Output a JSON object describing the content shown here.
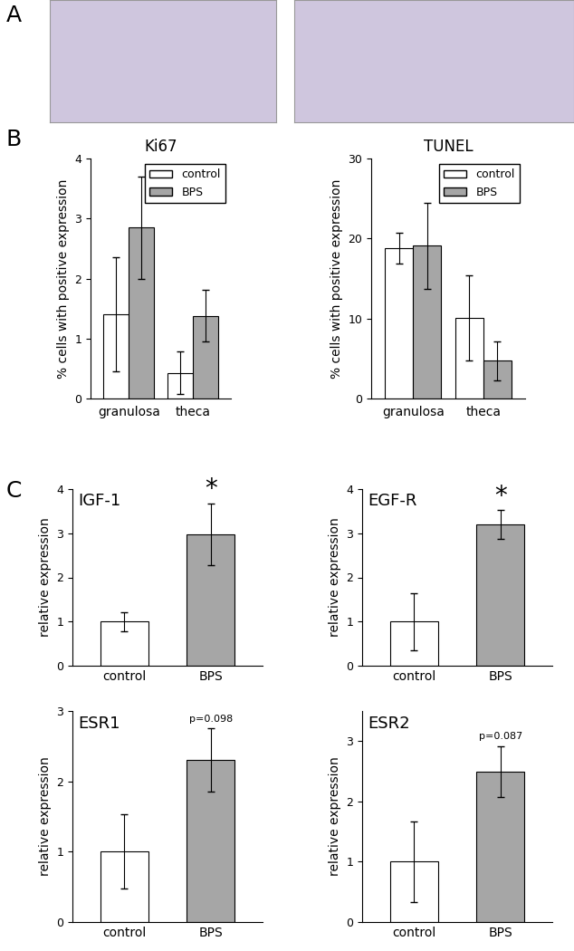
{
  "panel_labels": [
    "A",
    "B",
    "C"
  ],
  "chart_data": [
    {
      "type": "bar",
      "title": "Ki67",
      "y_label": "% cells with positive expression",
      "categories": [
        "granulosa",
        "theca"
      ],
      "series": [
        {
          "name": "control",
          "color": "#ffffff",
          "values": [
            1.4,
            0.43
          ],
          "errors": [
            0.95,
            0.35
          ]
        },
        {
          "name": "BPS",
          "color": "#a6a6a6",
          "values": [
            2.85,
            1.38
          ],
          "errors": [
            0.85,
            0.43
          ]
        }
      ],
      "ylim": [
        0,
        4
      ],
      "yticks": [
        0,
        1,
        2,
        3,
        4
      ],
      "legend": "upper right"
    },
    {
      "type": "bar",
      "title": "TUNEL",
      "y_label": "% cells with positive expression",
      "categories": [
        "granulosa",
        "theca"
      ],
      "series": [
        {
          "name": "control",
          "color": "#ffffff",
          "values": [
            18.8,
            10.1
          ],
          "errors": [
            1.9,
            5.3
          ]
        },
        {
          "name": "BPS",
          "color": "#a6a6a6",
          "values": [
            19.1,
            4.7
          ],
          "errors": [
            5.4,
            2.4
          ]
        }
      ],
      "ylim": [
        0,
        30
      ],
      "yticks": [
        0,
        10,
        20,
        30
      ],
      "legend": "upper right"
    },
    {
      "type": "bar",
      "title": "IGF-1",
      "y_label": "relative expression",
      "categories": [
        "control",
        "BPS"
      ],
      "values": [
        1.0,
        2.98
      ],
      "errors": [
        0.22,
        0.7
      ],
      "colors": [
        "#ffffff",
        "#a6a6a6"
      ],
      "ylim": [
        0,
        4
      ],
      "yticks": [
        0,
        1,
        2,
        3,
        4
      ],
      "annotations": [
        {
          "category": "BPS",
          "text": "*"
        }
      ]
    },
    {
      "type": "bar",
      "title": "EGF-R",
      "y_label": "relative expression",
      "categories": [
        "control",
        "BPS"
      ],
      "values": [
        1.0,
        3.2
      ],
      "errors": [
        0.65,
        0.33
      ],
      "colors": [
        "#ffffff",
        "#a6a6a6"
      ],
      "ylim": [
        0,
        4
      ],
      "yticks": [
        0,
        1,
        2,
        3,
        4
      ],
      "annotations": [
        {
          "category": "BPS",
          "text": "*"
        }
      ]
    },
    {
      "type": "bar",
      "title": "ESR1",
      "y_label": "relative expression",
      "categories": [
        "control",
        "BPS"
      ],
      "values": [
        1.0,
        2.3
      ],
      "errors": [
        0.53,
        0.45
      ],
      "colors": [
        "#ffffff",
        "#a6a6a6"
      ],
      "ylim": [
        0,
        3
      ],
      "yticks": [
        0,
        1,
        2,
        3
      ],
      "annotations": [
        {
          "category": "BPS",
          "text": "p=0.098"
        }
      ]
    },
    {
      "type": "bar",
      "title": "ESR2",
      "y_label": "relative expression",
      "categories": [
        "control",
        "BPS"
      ],
      "values": [
        1.0,
        2.5
      ],
      "errors": [
        0.67,
        0.42
      ],
      "colors": [
        "#ffffff",
        "#a6a6a6"
      ],
      "ylim": [
        0,
        3.5
      ],
      "yticks": [
        0,
        1,
        2,
        3
      ],
      "annotations": [
        {
          "category": "BPS",
          "text": "p=0.087"
        }
      ]
    }
  ]
}
